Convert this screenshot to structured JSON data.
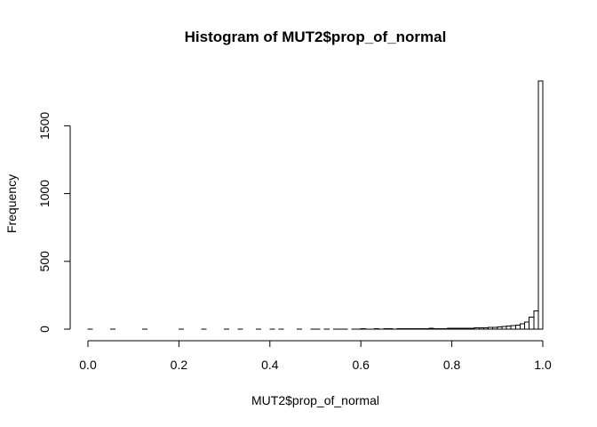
{
  "chart_data": {
    "type": "bar",
    "title": "Histogram of MUT2$prop_of_normal",
    "xlabel": "MUT2$prop_of_normal",
    "ylabel": "Frequency",
    "xlim": [
      0,
      1
    ],
    "ylim": [
      0,
      1830
    ],
    "x_ticks": [
      "0.0",
      "0.2",
      "0.4",
      "0.6",
      "0.8",
      "1.0"
    ],
    "y_ticks": [
      "0",
      "500",
      "1000",
      "1500"
    ],
    "bin_width": 0.01,
    "bin_start": 0,
    "values": [
      1,
      0,
      0,
      0,
      0,
      1,
      0,
      0,
      0,
      0,
      0,
      0,
      1,
      0,
      0,
      0,
      0,
      0,
      0,
      0,
      1,
      0,
      0,
      0,
      0,
      1,
      0,
      0,
      0,
      0,
      1,
      0,
      0,
      1,
      0,
      0,
      0,
      1,
      0,
      0,
      1,
      0,
      1,
      0,
      0,
      0,
      1,
      0,
      0,
      1,
      1,
      0,
      1,
      0,
      1,
      1,
      1,
      0,
      1,
      1,
      2,
      1,
      1,
      2,
      1,
      2,
      3,
      1,
      2,
      2,
      3,
      2,
      3,
      3,
      4,
      5,
      3,
      4,
      4,
      6,
      6,
      5,
      7,
      6,
      8,
      10,
      9,
      11,
      12,
      14,
      16,
      19,
      22,
      25,
      30,
      38,
      52,
      88,
      135,
      1830
    ]
  }
}
